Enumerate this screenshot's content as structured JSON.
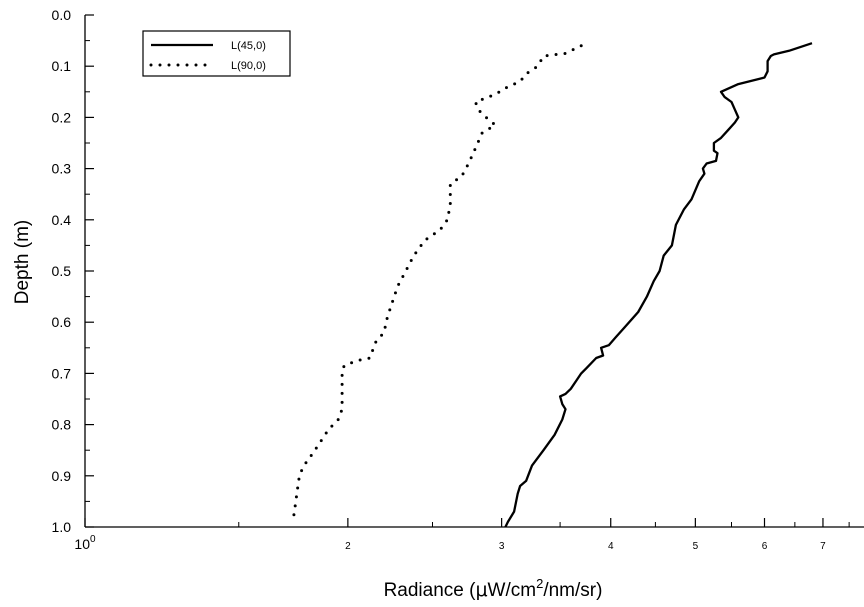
{
  "chart_data": {
    "type": "line",
    "xlabel_prefix": "Radiance (",
    "xlabel_mu": "μ",
    "xlabel_mid": "W/cm",
    "xlabel_sup": "2",
    "xlabel_suffix": "/nm/sr)",
    "ylabel": "Depth (m)",
    "xscale": "log",
    "xlim": [
      1,
      7.8
    ],
    "ylim": [
      0.0,
      1.0
    ],
    "y_inverted": true,
    "grid": false,
    "legend_position": "top-left",
    "x_ticks_major": [
      {
        "value": 1,
        "label": "10",
        "sup": "0"
      },
      {
        "value": 2,
        "label": "2"
      },
      {
        "value": 3,
        "label": "3"
      },
      {
        "value": 4,
        "label": "4"
      },
      {
        "value": 5,
        "label": "5"
      },
      {
        "value": 6,
        "label": "6"
      },
      {
        "value": 7,
        "label": "7"
      }
    ],
    "x_ticks_minor": [
      1.5
    ],
    "y_ticks": [
      "0.0",
      "0.1",
      "0.2",
      "0.3",
      "0.4",
      "0.5",
      "0.6",
      "0.7",
      "0.8",
      "0.9",
      "1.0"
    ],
    "series": [
      {
        "name": "L(45,0)",
        "style": "solid",
        "color": "#000000",
        "points": [
          [
            6.8,
            0.055
          ],
          [
            6.4,
            0.07
          ],
          [
            6.15,
            0.077
          ],
          [
            6.1,
            0.08
          ],
          [
            6.05,
            0.09
          ],
          [
            6.05,
            0.11
          ],
          [
            6.0,
            0.122
          ],
          [
            5.6,
            0.135
          ],
          [
            5.35,
            0.15
          ],
          [
            5.4,
            0.16
          ],
          [
            5.5,
            0.17
          ],
          [
            5.55,
            0.185
          ],
          [
            5.6,
            0.2
          ],
          [
            5.55,
            0.21
          ],
          [
            5.45,
            0.225
          ],
          [
            5.35,
            0.24
          ],
          [
            5.25,
            0.25
          ],
          [
            5.25,
            0.265
          ],
          [
            5.3,
            0.27
          ],
          [
            5.28,
            0.285
          ],
          [
            5.15,
            0.29
          ],
          [
            5.1,
            0.3
          ],
          [
            5.12,
            0.31
          ],
          [
            5.05,
            0.325
          ],
          [
            4.95,
            0.36
          ],
          [
            4.85,
            0.38
          ],
          [
            4.75,
            0.41
          ],
          [
            4.7,
            0.45
          ],
          [
            4.6,
            0.47
          ],
          [
            4.55,
            0.5
          ],
          [
            4.48,
            0.52
          ],
          [
            4.4,
            0.55
          ],
          [
            4.3,
            0.58
          ],
          [
            4.15,
            0.61
          ],
          [
            4.05,
            0.63
          ],
          [
            3.98,
            0.645
          ],
          [
            3.9,
            0.65
          ],
          [
            3.92,
            0.665
          ],
          [
            3.85,
            0.67
          ],
          [
            3.75,
            0.69
          ],
          [
            3.7,
            0.7
          ],
          [
            3.65,
            0.715
          ],
          [
            3.6,
            0.73
          ],
          [
            3.55,
            0.74
          ],
          [
            3.5,
            0.745
          ],
          [
            3.52,
            0.76
          ],
          [
            3.55,
            0.77
          ],
          [
            3.52,
            0.79
          ],
          [
            3.45,
            0.82
          ],
          [
            3.35,
            0.85
          ],
          [
            3.25,
            0.88
          ],
          [
            3.2,
            0.91
          ],
          [
            3.15,
            0.92
          ],
          [
            3.13,
            0.935
          ],
          [
            3.1,
            0.97
          ],
          [
            3.05,
            0.99
          ],
          [
            3.03,
            1.0
          ]
        ]
      },
      {
        "name": "L(90,0)",
        "style": "dotted",
        "color": "#000000",
        "points": [
          [
            3.7,
            0.06
          ],
          [
            3.55,
            0.075
          ],
          [
            3.35,
            0.08
          ],
          [
            3.3,
            0.1
          ],
          [
            3.2,
            0.115
          ],
          [
            3.15,
            0.13
          ],
          [
            3.05,
            0.14
          ],
          [
            2.95,
            0.155
          ],
          [
            2.9,
            0.16
          ],
          [
            2.8,
            0.17
          ],
          [
            2.82,
            0.185
          ],
          [
            2.88,
            0.2
          ],
          [
            2.95,
            0.215
          ],
          [
            2.85,
            0.23
          ],
          [
            2.8,
            0.26
          ],
          [
            2.75,
            0.29
          ],
          [
            2.7,
            0.315
          ],
          [
            2.62,
            0.33
          ],
          [
            2.62,
            0.37
          ],
          [
            2.6,
            0.4
          ],
          [
            2.55,
            0.42
          ],
          [
            2.45,
            0.44
          ],
          [
            2.38,
            0.47
          ],
          [
            2.33,
            0.5
          ],
          [
            2.28,
            0.53
          ],
          [
            2.25,
            0.56
          ],
          [
            2.22,
            0.59
          ],
          [
            2.2,
            0.62
          ],
          [
            2.15,
            0.64
          ],
          [
            2.12,
            0.67
          ],
          [
            2.05,
            0.675
          ],
          [
            1.98,
            0.685
          ],
          [
            1.97,
            0.7
          ],
          [
            1.97,
            0.77
          ],
          [
            1.95,
            0.79
          ],
          [
            1.9,
            0.81
          ],
          [
            1.85,
            0.84
          ],
          [
            1.8,
            0.87
          ],
          [
            1.78,
            0.88
          ],
          [
            1.76,
            0.9
          ],
          [
            1.75,
            0.93
          ],
          [
            1.74,
            0.96
          ],
          [
            1.73,
            0.99
          ]
        ]
      }
    ]
  }
}
